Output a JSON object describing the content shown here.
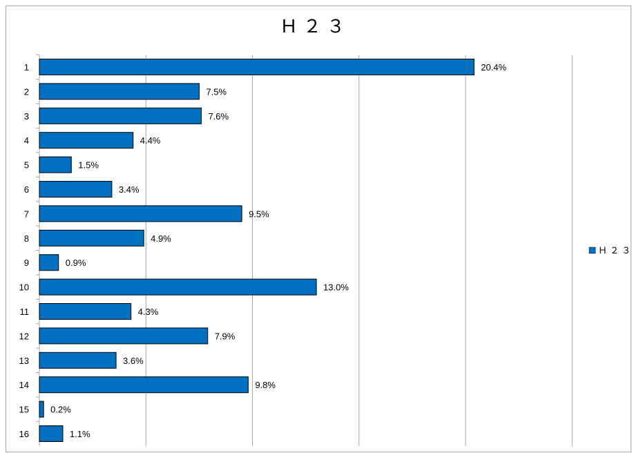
{
  "chart_data": {
    "type": "bar",
    "orientation": "horizontal",
    "title": "Ｈ２３",
    "categories": [
      "1",
      "2",
      "3",
      "4",
      "5",
      "6",
      "7",
      "8",
      "9",
      "10",
      "11",
      "12",
      "13",
      "14",
      "15",
      "16"
    ],
    "series": [
      {
        "name": "Ｈ２３",
        "values": [
          20.4,
          7.5,
          7.6,
          4.4,
          1.5,
          3.4,
          9.5,
          4.9,
          0.9,
          13.0,
          4.3,
          7.9,
          3.6,
          9.8,
          0.2,
          1.1
        ],
        "labels": [
          "20.4%",
          "7.5%",
          "7.6%",
          "4.4%",
          "1.5%",
          "3.4%",
          "9.5%",
          "4.9%",
          "0.9%",
          "13.0%",
          "4.3%",
          "7.9%",
          "3.6%",
          "9.8%",
          "0.2%",
          "1.1%"
        ],
        "color": "#0070c0"
      }
    ],
    "xlim": [
      0,
      25
    ],
    "x_gridlines": [
      0,
      5,
      10,
      15,
      20,
      25
    ],
    "x_tick_labels_visible": false,
    "grid": true,
    "legend_position": "right"
  }
}
